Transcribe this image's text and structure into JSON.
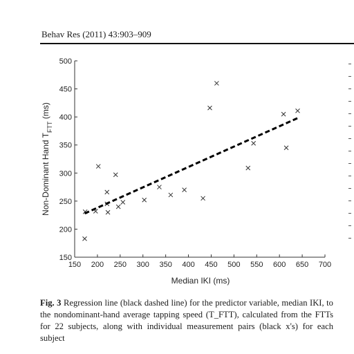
{
  "header": {
    "journal": "Behav Res (2011) 43:903–909"
  },
  "chart_data": {
    "type": "scatter",
    "title": "",
    "xlabel": "Median IKI (ms)",
    "ylabel": "Non-Dominant Hand T_FTT (ms)",
    "ylabel_main": "Non-Dominant Hand T",
    "ylabel_sub": "FTT",
    "ylabel_unit": " (ms)",
    "xlim": [
      150,
      700
    ],
    "ylim": [
      150,
      500
    ],
    "xticks": [
      150,
      200,
      250,
      300,
      350,
      400,
      450,
      500,
      550,
      600,
      650,
      700
    ],
    "yticks": [
      150,
      200,
      250,
      300,
      350,
      400,
      450,
      500
    ],
    "grid": false,
    "series": [
      {
        "marker": "x",
        "color": "#333333",
        "points": [
          [
            172,
            183
          ],
          [
            173,
            231
          ],
          [
            196,
            232
          ],
          [
            202,
            312
          ],
          [
            221,
            266
          ],
          [
            221,
            245
          ],
          [
            223,
            230
          ],
          [
            240,
            297
          ],
          [
            246,
            240
          ],
          [
            256,
            248
          ],
          [
            303,
            252
          ],
          [
            336,
            275
          ],
          [
            361,
            261
          ],
          [
            391,
            270
          ],
          [
            432,
            255
          ],
          [
            447,
            416
          ],
          [
            462,
            460
          ],
          [
            531,
            309
          ],
          [
            543,
            353
          ],
          [
            609,
            405
          ],
          [
            615,
            345
          ],
          [
            640,
            411
          ]
        ]
      }
    ],
    "regression_line": {
      "style": "dashed",
      "color": "#000000",
      "x": [
        172,
        640
      ],
      "y": [
        228,
        398
      ]
    }
  },
  "caption": {
    "label": "Fig. 3",
    "text": "Regression line (black dashed line) for the predictor variable, median IKI, to the nondominant-hand average tapping speed (T_FTT), calculated from the FTTs for 22 subjects, along with individual measurement pairs (black x's) for each subject"
  }
}
